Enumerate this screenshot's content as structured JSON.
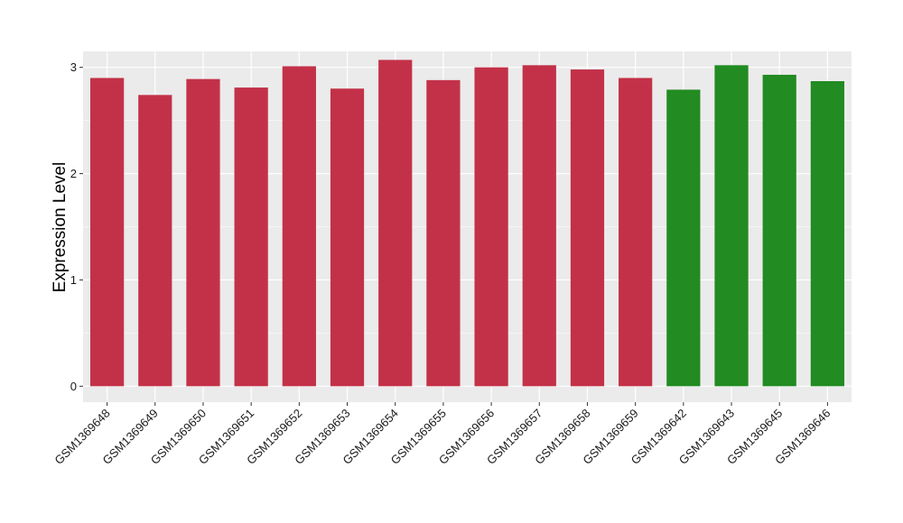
{
  "chart_data": {
    "type": "bar",
    "title": "",
    "xlabel": "",
    "ylabel": "Expression Level",
    "ylim": [
      -0.15,
      3.15
    ],
    "yticks": [
      0,
      1,
      2,
      3
    ],
    "grid": true,
    "legend": "none",
    "categories": [
      "GSM1369648",
      "GSM1369649",
      "GSM1369650",
      "GSM1369651",
      "GSM1369652",
      "GSM1369653",
      "GSM1369654",
      "GSM1369655",
      "GSM1369656",
      "GSM1369657",
      "GSM1369658",
      "GSM1369659",
      "GSM1369642",
      "GSM1369643",
      "GSM1369645",
      "GSM1369646"
    ],
    "values": [
      2.9,
      2.74,
      2.89,
      2.81,
      3.01,
      2.8,
      3.07,
      2.88,
      3.0,
      3.02,
      2.98,
      2.9,
      2.79,
      3.02,
      2.93,
      2.87
    ],
    "colors": [
      "#C33149",
      "#C33149",
      "#C33149",
      "#C33149",
      "#C33149",
      "#C33149",
      "#C33149",
      "#C33149",
      "#C33149",
      "#C33149",
      "#C33149",
      "#C33149",
      "#228B22",
      "#228B22",
      "#228B22",
      "#228B22"
    ],
    "panel_background": "#EBEBEB",
    "grid_color": "#FFFFFF"
  }
}
